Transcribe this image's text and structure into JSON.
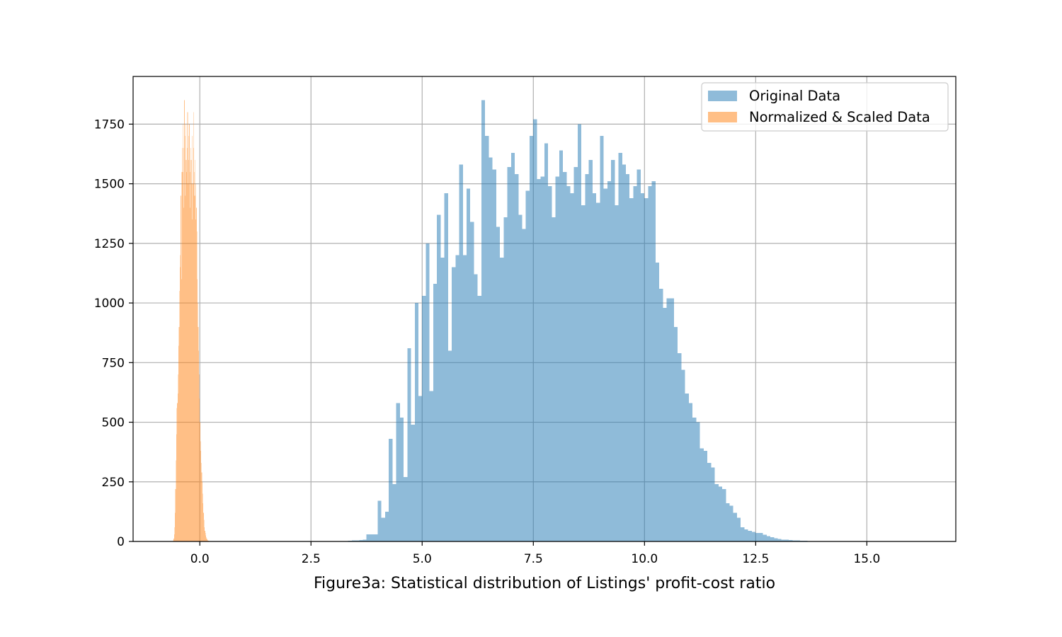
{
  "chart_data": {
    "type": "bar",
    "title": "",
    "xlabel": "Figure3a: Statistical distribution of Listings' profit-cost ratio",
    "ylabel": "",
    "xlim": [
      -1.5,
      17.0
    ],
    "ylim": [
      0,
      1950
    ],
    "xticks": [
      0.0,
      2.5,
      5.0,
      7.5,
      10.0,
      12.5,
      15.0
    ],
    "xtick_labels": [
      "0.0",
      "2.5",
      "5.0",
      "7.5",
      "10.0",
      "12.5",
      "15.0"
    ],
    "yticks": [
      0,
      250,
      500,
      750,
      1000,
      1250,
      1500,
      1750
    ],
    "ytick_labels": [
      "0",
      "250",
      "500",
      "750",
      "1000",
      "1250",
      "1500",
      "1750"
    ],
    "grid": true,
    "legend_position": "top-right",
    "series": [
      {
        "name": "Original Data",
        "color": "#1f77b4",
        "alpha": 0.5,
        "bin_start": 3.25,
        "bin_width": 0.0833,
        "values": [
          2,
          3,
          4,
          5,
          6,
          8,
          30,
          30,
          30,
          170,
          100,
          125,
          430,
          240,
          580,
          520,
          270,
          810,
          490,
          1000,
          610,
          1030,
          1250,
          630,
          1080,
          1370,
          1190,
          1460,
          800,
          1150,
          1200,
          1580,
          1200,
          1480,
          1340,
          1120,
          1030,
          1850,
          1700,
          1610,
          1560,
          1320,
          1190,
          1360,
          1570,
          1630,
          1540,
          1370,
          1310,
          1470,
          1700,
          1770,
          1520,
          1530,
          1670,
          1490,
          1360,
          1530,
          1640,
          1550,
          1490,
          1460,
          1570,
          1750,
          1410,
          1540,
          1600,
          1460,
          1420,
          1700,
          1480,
          1510,
          1600,
          1410,
          1630,
          1580,
          1540,
          1440,
          1490,
          1560,
          1460,
          1440,
          1490,
          1510,
          1170,
          1060,
          980,
          1020,
          1020,
          900,
          790,
          720,
          620,
          580,
          520,
          500,
          390,
          380,
          330,
          310,
          240,
          230,
          220,
          160,
          150,
          120,
          100,
          60,
          50,
          45,
          40,
          36,
          35,
          28,
          22,
          18,
          14,
          10,
          8,
          7,
          6,
          5,
          4,
          3,
          3,
          2,
          2,
          2,
          1,
          1,
          1,
          1
        ]
      },
      {
        "name": "Normalized & Scaled Data",
        "color": "#ff7f0e",
        "alpha": 0.5,
        "bin_start": -0.6,
        "bin_width": 0.01,
        "values": [
          5,
          12,
          30,
          60,
          120,
          220,
          340,
          450,
          560,
          580,
          620,
          700,
          820,
          900,
          1050,
          1150,
          1200,
          1450,
          1100,
          1550,
          1650,
          1550,
          1750,
          1400,
          1650,
          1850,
          1450,
          1700,
          1750,
          1600,
          1550,
          1650,
          1800,
          1500,
          1700,
          1600,
          1750,
          1400,
          1550,
          1650,
          1600,
          1500,
          1700,
          1350,
          1500,
          1800,
          1650,
          1550,
          1450,
          1600,
          1350,
          1500,
          1400,
          1300,
          1100,
          1000,
          900,
          800,
          700,
          600,
          500,
          420,
          380,
          330,
          290,
          250,
          200,
          160,
          120,
          90,
          60,
          45,
          35,
          25,
          18,
          12,
          8,
          5,
          4,
          3,
          2,
          2,
          1,
          1,
          1,
          1,
          1,
          1,
          1
        ]
      }
    ]
  }
}
